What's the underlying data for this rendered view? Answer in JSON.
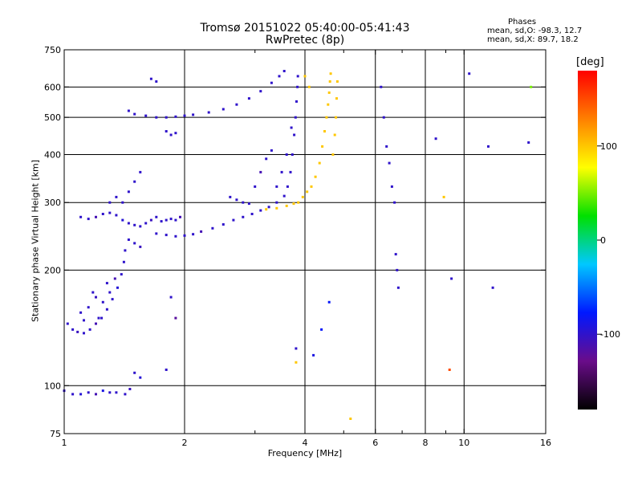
{
  "title": {
    "line1": "Tromsø 20151022 05:40:00-05:41:43",
    "line2": "RwPretec (8p)"
  },
  "stats": {
    "heading": "Phases",
    "o_line": "mean, sd,O: -98.3, 12.7",
    "x_line": "mean, sd,X:  89.7, 18.2"
  },
  "colorbar": {
    "label": "[deg]",
    "range": [
      -180,
      180
    ],
    "ticks": [
      "100",
      "0",
      "-100"
    ],
    "tick_values": [
      100,
      0,
      -100
    ],
    "colors": [
      "#000000",
      "#6a0c8a",
      "#0018ff",
      "#00c8ff",
      "#00e000",
      "#ffff00",
      "#ff8000",
      "#ff0000"
    ]
  },
  "chart_data": {
    "type": "scatter",
    "title": "Tromsø 20151022 05:40:00-05:41:43",
    "subtitle": "RwPretec (8p)",
    "xlabel": "Frequency [MHz]",
    "ylabel": "Stationary phase Virtual Height [km]",
    "x_scale": "log",
    "y_scale": "log",
    "xlim": [
      1,
      16
    ],
    "ylim": [
      75,
      750
    ],
    "x_ticks": [
      1,
      2,
      4,
      6,
      8,
      10,
      16
    ],
    "x_tick_labels": [
      "1",
      "2",
      "4",
      "6",
      "8",
      "10",
      "16"
    ],
    "x_minor_ticks": [
      3,
      5,
      7,
      9
    ],
    "y_ticks": [
      75,
      100,
      200,
      300,
      400,
      500,
      600,
      750
    ],
    "y_tick_labels": [
      "75",
      "100",
      "200",
      "300",
      "400",
      "500",
      "600",
      "750"
    ],
    "grid_x": [
      2,
      4,
      6,
      8,
      10
    ],
    "grid_y": [
      100,
      200,
      300,
      400,
      500,
      600
    ],
    "color_scale_deg": [
      -180,
      180
    ],
    "series": [
      {
        "points": [
          [
            1.0,
            97,
            -100
          ],
          [
            1.05,
            95,
            -100
          ],
          [
            1.1,
            95,
            -95
          ],
          [
            1.15,
            96,
            -100
          ],
          [
            1.2,
            95,
            -110
          ],
          [
            1.25,
            97,
            -90
          ],
          [
            1.3,
            96,
            -100
          ],
          [
            1.35,
            96,
            -100
          ],
          [
            1.42,
            95,
            -100
          ],
          [
            1.46,
            98,
            -105
          ],
          [
            1.5,
            108,
            -100
          ],
          [
            1.55,
            105,
            -95
          ],
          [
            1.02,
            145,
            -100
          ],
          [
            1.05,
            140,
            -100
          ],
          [
            1.08,
            138,
            -105
          ],
          [
            1.12,
            137,
            -100
          ],
          [
            1.16,
            140,
            -100
          ],
          [
            1.2,
            145,
            -110
          ],
          [
            1.24,
            150,
            -100
          ],
          [
            1.28,
            158,
            -100
          ],
          [
            1.32,
            168,
            -100
          ],
          [
            1.36,
            180,
            -95
          ],
          [
            1.39,
            195,
            -100
          ],
          [
            1.41,
            210,
            -100
          ],
          [
            1.42,
            225,
            -100
          ],
          [
            1.1,
            155,
            -100
          ],
          [
            1.15,
            160,
            -100
          ],
          [
            1.2,
            170,
            -105
          ],
          [
            1.25,
            165,
            -100
          ],
          [
            1.3,
            175,
            -100
          ],
          [
            1.34,
            190,
            -110
          ],
          [
            1.28,
            185,
            -100
          ],
          [
            1.22,
            150,
            -100
          ],
          [
            1.18,
            175,
            -100
          ],
          [
            1.12,
            148,
            -100
          ],
          [
            1.1,
            275,
            -100
          ],
          [
            1.15,
            272,
            -100
          ],
          [
            1.2,
            275,
            -110
          ],
          [
            1.25,
            280,
            -100
          ],
          [
            1.3,
            282,
            -100
          ],
          [
            1.35,
            278,
            -100
          ],
          [
            1.4,
            270,
            -95
          ],
          [
            1.45,
            265,
            -100
          ],
          [
            1.5,
            262,
            -100
          ],
          [
            1.55,
            260,
            -100
          ],
          [
            1.6,
            265,
            -100
          ],
          [
            1.65,
            270,
            -105
          ],
          [
            1.7,
            275,
            -100
          ],
          [
            1.75,
            268,
            -100
          ],
          [
            1.8,
            270,
            -100
          ],
          [
            1.85,
            272,
            -100
          ],
          [
            1.9,
            270,
            -100
          ],
          [
            1.95,
            275,
            -110
          ],
          [
            1.3,
            300,
            -100
          ],
          [
            1.35,
            310,
            -100
          ],
          [
            1.4,
            300,
            -100
          ],
          [
            1.45,
            320,
            -100
          ],
          [
            1.5,
            340,
            -100
          ],
          [
            1.55,
            360,
            -100
          ],
          [
            1.45,
            240,
            -100
          ],
          [
            1.5,
            235,
            -100
          ],
          [
            1.55,
            230,
            -105
          ],
          [
            1.7,
            249,
            -100
          ],
          [
            1.8,
            247,
            -100
          ],
          [
            1.9,
            245,
            -100
          ],
          [
            2.0,
            246,
            -100
          ],
          [
            2.1,
            248,
            -100
          ],
          [
            2.2,
            252,
            -110
          ],
          [
            2.35,
            257,
            -100
          ],
          [
            2.5,
            263,
            -100
          ],
          [
            2.65,
            270,
            -100
          ],
          [
            2.8,
            275,
            -100
          ],
          [
            2.95,
            280,
            -100
          ],
          [
            3.1,
            286,
            -100
          ],
          [
            3.25,
            292,
            -100
          ],
          [
            3.4,
            300,
            -100
          ],
          [
            3.55,
            312,
            -100
          ],
          [
            3.62,
            330,
            -100
          ],
          [
            3.68,
            360,
            -100
          ],
          [
            3.72,
            400,
            -100
          ],
          [
            3.76,
            450,
            -100
          ],
          [
            3.79,
            500,
            -100
          ],
          [
            3.81,
            550,
            -100
          ],
          [
            3.83,
            600,
            -100
          ],
          [
            3.84,
            640,
            -100
          ],
          [
            2.6,
            310,
            -100
          ],
          [
            2.7,
            305,
            -100
          ],
          [
            2.8,
            300,
            -100
          ],
          [
            2.9,
            298,
            -100
          ],
          [
            3.0,
            330,
            -100
          ],
          [
            3.1,
            360,
            -110
          ],
          [
            3.2,
            390,
            -100
          ],
          [
            3.3,
            410,
            -100
          ],
          [
            3.4,
            330,
            -100
          ],
          [
            3.5,
            360,
            -100
          ],
          [
            3.6,
            400,
            -100
          ],
          [
            3.7,
            470,
            -100
          ],
          [
            1.45,
            520,
            -100
          ],
          [
            1.5,
            510,
            -100
          ],
          [
            1.6,
            505,
            -100
          ],
          [
            1.7,
            500,
            -100
          ],
          [
            1.8,
            500,
            -100
          ],
          [
            1.9,
            502,
            -100
          ],
          [
            2.0,
            505,
            -100
          ],
          [
            2.1,
            508,
            -100
          ],
          [
            2.3,
            515,
            -100
          ],
          [
            2.5,
            525,
            -100
          ],
          [
            2.7,
            540,
            -100
          ],
          [
            2.9,
            560,
            -100
          ],
          [
            3.1,
            585,
            -100
          ],
          [
            3.3,
            615,
            -100
          ],
          [
            3.45,
            640,
            -100
          ],
          [
            3.55,
            660,
            -100
          ],
          [
            1.8,
            460,
            -100
          ],
          [
            1.9,
            455,
            -100
          ],
          [
            1.85,
            450,
            -100
          ],
          [
            1.65,
            630,
            -100
          ],
          [
            1.7,
            620,
            -100
          ],
          [
            3.85,
            300,
            100
          ],
          [
            3.95,
            310,
            100
          ],
          [
            4.05,
            320,
            100
          ],
          [
            4.15,
            330,
            100
          ],
          [
            4.25,
            350,
            100
          ],
          [
            4.35,
            380,
            100
          ],
          [
            4.42,
            420,
            100
          ],
          [
            4.48,
            460,
            100
          ],
          [
            4.53,
            500,
            100
          ],
          [
            4.57,
            540,
            100
          ],
          [
            4.6,
            580,
            100
          ],
          [
            4.62,
            620,
            100
          ],
          [
            4.64,
            650,
            100
          ],
          [
            4.7,
            400,
            100
          ],
          [
            4.75,
            450,
            100
          ],
          [
            4.78,
            500,
            100
          ],
          [
            4.8,
            560,
            100
          ],
          [
            4.82,
            620,
            100
          ],
          [
            3.2,
            288,
            100
          ],
          [
            3.4,
            290,
            100
          ],
          [
            3.6,
            294,
            100
          ],
          [
            3.75,
            298,
            100
          ],
          [
            4.0,
            640,
            100
          ],
          [
            4.1,
            600,
            100
          ],
          [
            6.2,
            600,
            -100
          ],
          [
            6.3,
            500,
            -100
          ],
          [
            6.4,
            420,
            -100
          ],
          [
            6.5,
            380,
            -100
          ],
          [
            6.6,
            330,
            -100
          ],
          [
            6.7,
            300,
            -100
          ],
          [
            6.75,
            220,
            -100
          ],
          [
            6.8,
            200,
            -100
          ],
          [
            6.85,
            180,
            -100
          ],
          [
            9.3,
            190,
            -100
          ],
          [
            11.8,
            180,
            -100
          ],
          [
            10.3,
            650,
            -100
          ],
          [
            11.5,
            420,
            -100
          ],
          [
            14.5,
            430,
            -100
          ],
          [
            8.5,
            440,
            -100
          ],
          [
            8.9,
            310,
            100
          ],
          [
            9.2,
            110,
            150
          ],
          [
            5.2,
            82,
            100
          ],
          [
            14.7,
            600,
            50
          ],
          [
            1.8,
            110,
            -100
          ],
          [
            1.85,
            170,
            -100
          ],
          [
            1.9,
            150,
            -120
          ],
          [
            4.2,
            120,
            -90
          ],
          [
            4.4,
            140,
            -80
          ],
          [
            4.6,
            165,
            -80
          ],
          [
            3.8,
            125,
            -100
          ],
          [
            3.8,
            115,
            100
          ]
        ]
      }
    ]
  }
}
